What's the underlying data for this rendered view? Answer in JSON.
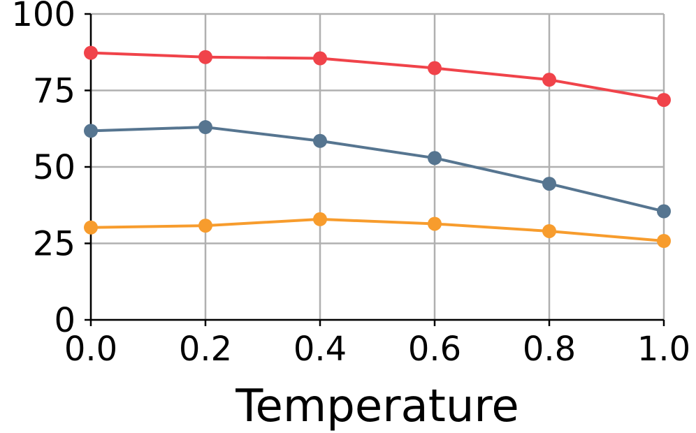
{
  "chart_data": {
    "type": "line",
    "title": "",
    "xlabel": "Temperature",
    "ylabel": "",
    "x": [
      0.0,
      0.2,
      0.4,
      0.6,
      0.8,
      1.0
    ],
    "xlim": [
      0.0,
      1.0
    ],
    "ylim": [
      0,
      100
    ],
    "x_ticks": [
      "0.0",
      "0.2",
      "0.4",
      "0.6",
      "0.8",
      "1.0"
    ],
    "y_ticks": [
      "0",
      "25",
      "50",
      "75",
      "100"
    ],
    "grid": true,
    "legend": "none",
    "series": [
      {
        "color": "#f0434a",
        "values": [
          87.3,
          85.9,
          85.5,
          82.3,
          78.5,
          71.9
        ]
      },
      {
        "color": "#567590",
        "values": [
          61.8,
          63.0,
          58.5,
          52.9,
          44.5,
          35.5
        ]
      },
      {
        "color": "#f79c2d",
        "values": [
          30.2,
          30.8,
          32.9,
          31.4,
          29.0,
          25.8
        ]
      }
    ]
  }
}
